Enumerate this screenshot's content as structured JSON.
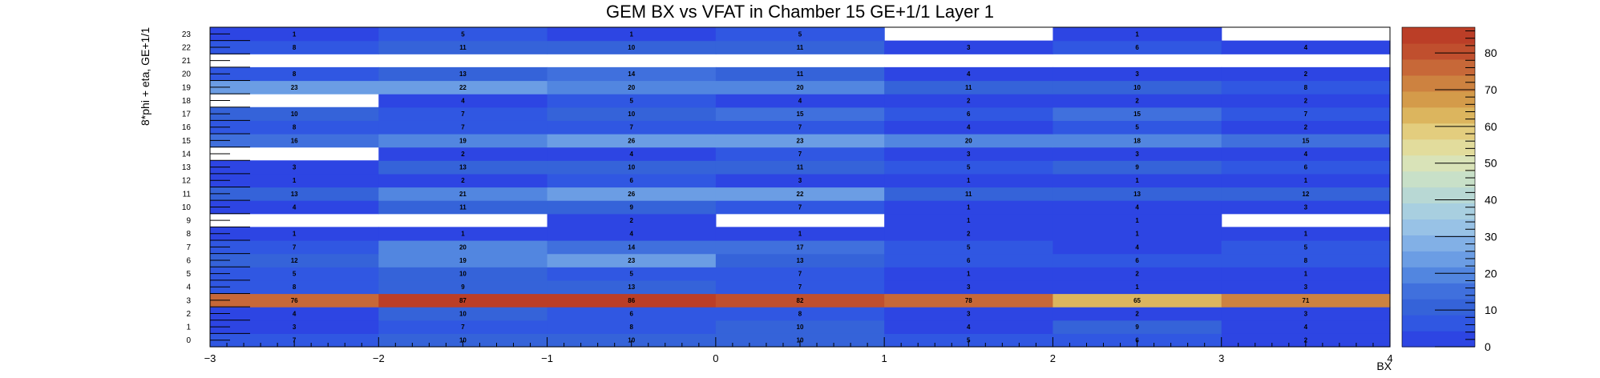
{
  "chart_data": {
    "type": "heatmap",
    "title": "GEM BX vs VFAT in Chamber 15 GE+1/1 Layer 1",
    "xlabel": "BX",
    "ylabel": "8*phi + eta, GE+1/1",
    "x_edges": [
      -3,
      -2,
      -1,
      0,
      1,
      2,
      3,
      4
    ],
    "xlim": [
      -3,
      4
    ],
    "x_ticks": [
      "−3",
      "−2",
      "−1",
      "0",
      "1",
      "2",
      "3",
      "4"
    ],
    "y_categories": [
      "0",
      "1",
      "2",
      "3",
      "4",
      "5",
      "6",
      "7",
      "8",
      "9",
      "10",
      "11",
      "12",
      "13",
      "14",
      "15",
      "16",
      "17",
      "18",
      "19",
      "20",
      "21",
      "22",
      "23"
    ],
    "x_bins": [
      "-3..-2",
      "-2..-1",
      "-1..0",
      "0..1",
      "1..2",
      "2..3",
      "3..4"
    ],
    "values": [
      [
        7,
        10,
        10,
        10,
        5,
        6,
        2
      ],
      [
        3,
        7,
        8,
        10,
        4,
        9,
        4
      ],
      [
        4,
        10,
        6,
        8,
        3,
        2,
        3
      ],
      [
        76,
        87,
        86,
        82,
        78,
        65,
        71
      ],
      [
        8,
        9,
        13,
        7,
        3,
        1,
        3
      ],
      [
        5,
        10,
        5,
        7,
        1,
        2,
        1
      ],
      [
        12,
        19,
        23,
        13,
        6,
        6,
        8
      ],
      [
        7,
        20,
        14,
        17,
        5,
        4,
        5
      ],
      [
        1,
        1,
        4,
        1,
        2,
        1,
        1
      ],
      [
        null,
        null,
        2,
        null,
        1,
        1,
        null
      ],
      [
        4,
        11,
        9,
        7,
        1,
        4,
        3
      ],
      [
        13,
        21,
        26,
        22,
        11,
        13,
        12
      ],
      [
        1,
        2,
        6,
        3,
        1,
        1,
        1
      ],
      [
        3,
        13,
        10,
        11,
        5,
        9,
        6
      ],
      [
        null,
        2,
        4,
        7,
        3,
        3,
        4
      ],
      [
        16,
        19,
        26,
        23,
        20,
        18,
        15
      ],
      [
        8,
        7,
        7,
        7,
        4,
        5,
        2
      ],
      [
        10,
        7,
        10,
        15,
        6,
        15,
        7
      ],
      [
        null,
        4,
        5,
        4,
        2,
        2,
        2
      ],
      [
        23,
        22,
        20,
        20,
        11,
        10,
        8
      ],
      [
        8,
        13,
        14,
        11,
        4,
        3,
        2
      ],
      [
        null,
        null,
        null,
        null,
        null,
        null,
        null
      ],
      [
        8,
        11,
        10,
        11,
        3,
        6,
        4
      ],
      [
        1,
        5,
        1,
        5,
        null,
        1,
        null
      ]
    ],
    "zlim": [
      0,
      87
    ],
    "colorbar_ticks": [
      "0",
      "10",
      "20",
      "30",
      "40",
      "50",
      "60",
      "70",
      "80"
    ],
    "colormap": [
      "#2d45e3",
      "#3057e2",
      "#3563d9",
      "#4070dd",
      "#5286e0",
      "#6b9de4",
      "#82b0e6",
      "#98c2e6",
      "#a8cfe0",
      "#b8d8d4",
      "#c8e0c8",
      "#d9e3b8",
      "#e2dc9c",
      "#e3cd7e",
      "#dcb55e",
      "#d49b4a",
      "#cd8240",
      "#c76838",
      "#c04f2e",
      "#bb3e27"
    ],
    "grid": false,
    "legend": "colorbar right"
  }
}
